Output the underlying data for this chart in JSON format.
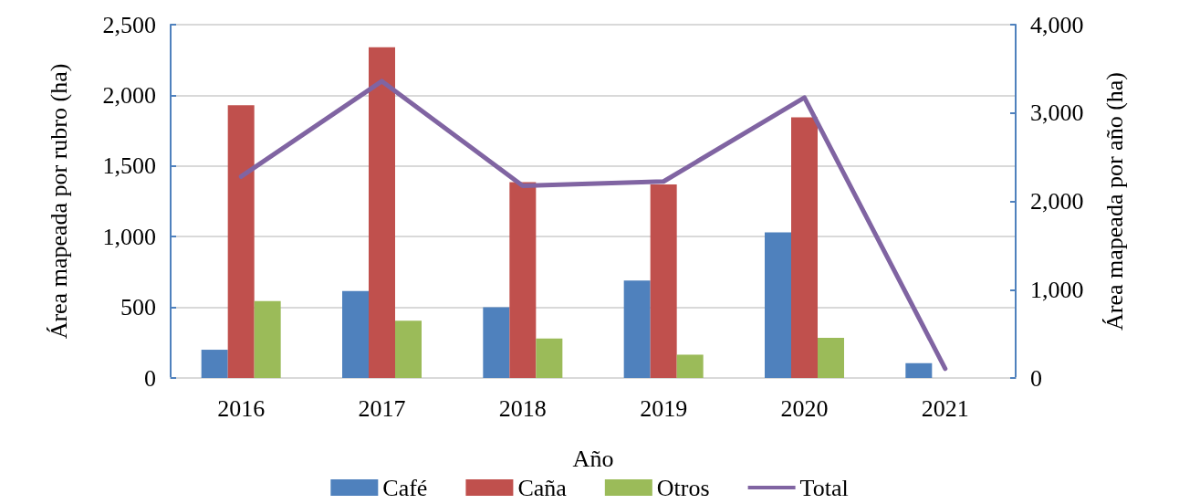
{
  "chart_data": {
    "type": "bar",
    "xlabel": "Año",
    "ylabel": "Área mapeada por rubro (ha)",
    "y2label": "Área mapeada por año (ha)",
    "categories": [
      "2016",
      "2017",
      "2018",
      "2019",
      "2020",
      "2021"
    ],
    "series": [
      {
        "name": "Café",
        "color": "#4f81bd",
        "values": [
          200,
          615,
          500,
          690,
          1030,
          105
        ]
      },
      {
        "name": "Caña",
        "color": "#c0504d",
        "values": [
          1930,
          2340,
          1385,
          1370,
          1845,
          null
        ]
      },
      {
        "name": "Otros",
        "color": "#9bbb59",
        "values": [
          545,
          405,
          280,
          165,
          285,
          null
        ]
      },
      {
        "name": "Total",
        "type": "line",
        "axis": "y2",
        "color": "#8064a2",
        "values": [
          2280,
          3360,
          2175,
          2225,
          3175,
          105
        ]
      }
    ],
    "ylim": [
      0,
      2500
    ],
    "yticks": [
      {
        "value": 0,
        "label": "0"
      },
      {
        "value": 500,
        "label": "500"
      },
      {
        "value": 1000,
        "label": "1,000"
      },
      {
        "value": 1500,
        "label": "1,500"
      },
      {
        "value": 2000,
        "label": "2,000"
      },
      {
        "value": 2500,
        "label": "2,500"
      }
    ],
    "y2lim": [
      0,
      4000
    ],
    "y2ticks": [
      {
        "value": 0,
        "label": "0"
      },
      {
        "value": 1000,
        "label": "1,000"
      },
      {
        "value": 2000,
        "label": "2,000"
      },
      {
        "value": 3000,
        "label": "3,000"
      },
      {
        "value": 4000,
        "label": "4,000"
      }
    ],
    "grid": "y",
    "legend": "bottom",
    "marker": "none",
    "line_style": "solid"
  }
}
